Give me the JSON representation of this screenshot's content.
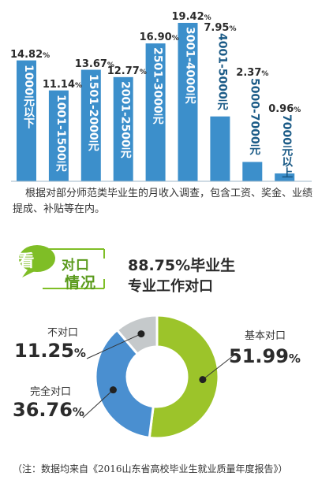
{
  "bar_chart": {
    "note": "根据对部分师范类毕业生的月收入调查，包含工资、奖金、业绩提成、补贴等在内。",
    "color": "#3c8fcb"
  },
  "badge": {
    "icon_char": "看",
    "line1": "对口",
    "line2": "情况",
    "color": "#7fbe26"
  },
  "headline": {
    "line1": "88.75%毕业生",
    "line2": "专业工作对口"
  },
  "donut": {
    "segments": [
      {
        "name": "基本对口",
        "value_text": "51.99",
        "color": "#9cc42a"
      },
      {
        "name": "完全对口",
        "value_text": "36.76",
        "color": "#4a8fd0"
      },
      {
        "name": "不对口",
        "value_text": "11.25",
        "color": "#c5c9cb"
      }
    ],
    "percent_sign": "%"
  },
  "footnote": "（注：数据均来自《2016山东省高校毕业生就业质量年度报告》）",
  "chart_data": [
    {
      "type": "bar",
      "categories": [
        "1000元以下",
        "1001-1500元",
        "1501-2000元",
        "2001-2500元",
        "2501-3000元",
        "3001-4000元",
        "4001-5000元",
        "5000-7000元",
        "7000元以上"
      ],
      "values": [
        14.82,
        11.14,
        13.67,
        12.77,
        16.9,
        19.42,
        7.95,
        2.37,
        0.96
      ],
      "value_labels": [
        "14.82%",
        "11.14%",
        "13.67%",
        "12.77%",
        "16.90%",
        "19.42%",
        "7.95%",
        "2.37%",
        "0.96%"
      ],
      "title": "",
      "xlabel": "",
      "ylabel": "",
      "grid": false
    },
    {
      "type": "pie",
      "categories": [
        "基本对口",
        "完全对口",
        "不对口"
      ],
      "values": [
        51.99,
        36.76,
        11.25
      ],
      "title": "",
      "donut": true
    }
  ]
}
